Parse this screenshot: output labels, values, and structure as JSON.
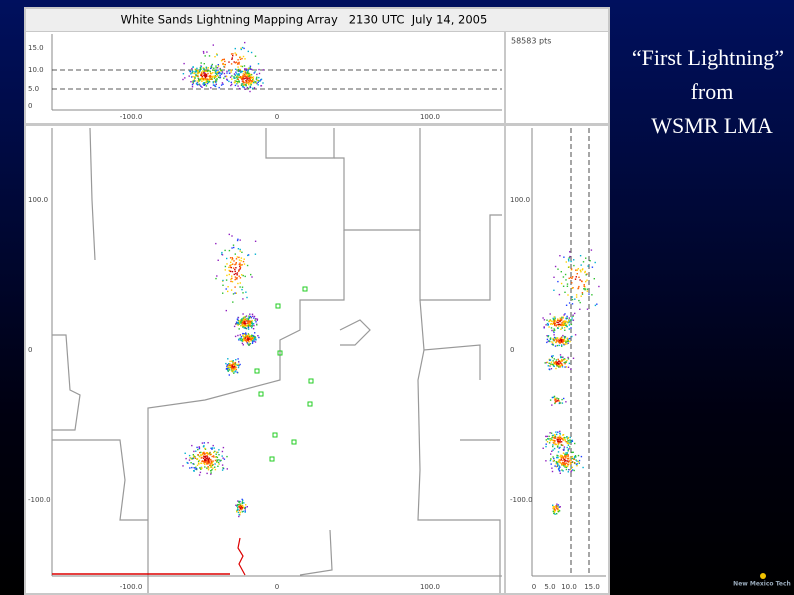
{
  "header": {
    "title": "White Sands Lightning Mapping Array   2130 UTC  July 14, 2005"
  },
  "altitude_panel": {
    "point_count": "58583 pts",
    "y_ticks": [
      "15.0",
      "10.0",
      "5.0",
      "0"
    ],
    "x_ticks": [
      "-100.0",
      "0",
      "100.0"
    ]
  },
  "plan_panel": {
    "y_ticks": [
      "100.0",
      "0",
      "-100.0"
    ],
    "x_ticks": [
      "-100.0",
      "0",
      "100.0"
    ]
  },
  "side_panel": {
    "x_ticks": [
      "0",
      "5.0",
      "10.0",
      "15.0"
    ],
    "y_ticks": [
      "100.0",
      "0",
      "-100.0"
    ]
  },
  "slide": {
    "caption": [
      "“First Lightning”",
      "from",
      "WSMR LMA"
    ],
    "logo": "New Mexico Tech"
  }
}
